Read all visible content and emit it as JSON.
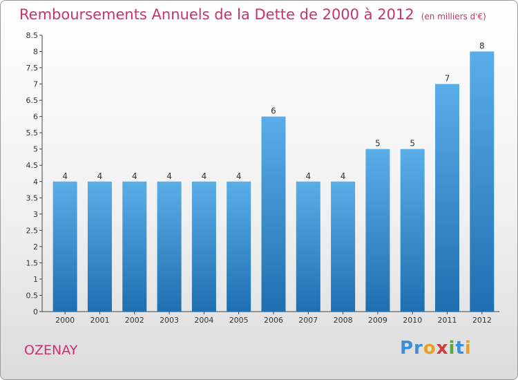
{
  "header": {
    "title": "Remboursements Annuels de la Dette de 2000 à 2012",
    "subtitle": "(en milliers d'€)"
  },
  "footer": {
    "city": "OZENAY",
    "logo": [
      "Pr",
      "o",
      "x",
      "i",
      "t",
      "i"
    ]
  },
  "colors": {
    "accent": "#c8326e",
    "bar_top": "#5aaee8",
    "bar_bottom": "#1e6fb0"
  },
  "chart_data": {
    "type": "bar",
    "title": "Remboursements Annuels de la Dette de 2000 à 2012",
    "xlabel": "",
    "ylabel": "",
    "categories": [
      "2000",
      "2001",
      "2002",
      "2003",
      "2004",
      "2005",
      "2006",
      "2007",
      "2008",
      "2009",
      "2010",
      "2011",
      "2012"
    ],
    "values": [
      4,
      4,
      4,
      4,
      4,
      4,
      6,
      4,
      4,
      5,
      5,
      7,
      8
    ],
    "data_labels": [
      "4",
      "4",
      "4",
      "4",
      "4",
      "4",
      "6",
      "4",
      "4",
      "5",
      "5",
      "7",
      "8"
    ],
    "ylim": [
      0,
      8.5
    ],
    "yticks": [
      "0",
      "0.5",
      "1",
      "1.5",
      "2",
      "2.5",
      "3",
      "3.5",
      "4",
      "4.5",
      "5",
      "5.5",
      "6",
      "6.5",
      "7",
      "7.5",
      "8",
      "8.5"
    ],
    "grid": false
  }
}
